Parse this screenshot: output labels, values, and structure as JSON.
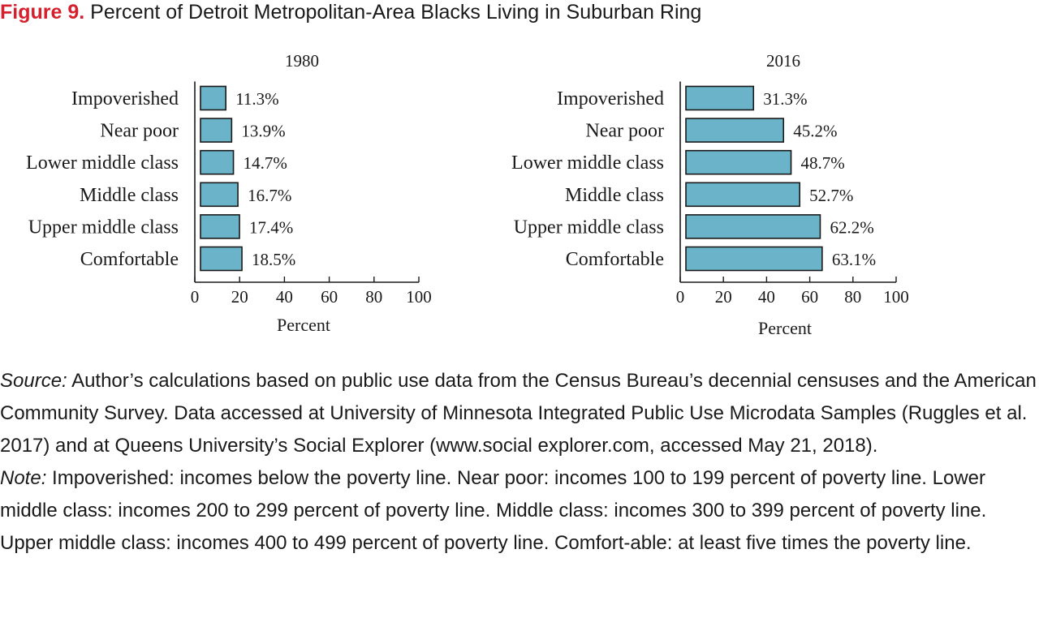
{
  "figure": {
    "number_label": "Figure 9.",
    "title": "Percent of Detroit Metropolitan-Area Blacks Living in Suburban Ring"
  },
  "colors": {
    "bar_fill": "#6ab3c9",
    "bar_stroke": "#1a1a1a",
    "accent": "#d6202e",
    "text": "#1a1a1a"
  },
  "chart_data": [
    {
      "type": "bar",
      "orientation": "horizontal",
      "title": "1980",
      "xlabel": "Percent",
      "ylabel": "",
      "xlim": [
        0,
        100
      ],
      "ticks": [
        0,
        20,
        40,
        60,
        80,
        100
      ],
      "grid": false,
      "categories": [
        "Impoverished",
        "Near poor",
        "Lower middle class",
        "Middle class",
        "Upper middle class",
        "Comfortable"
      ],
      "values": [
        11.3,
        13.9,
        14.7,
        16.7,
        17.4,
        18.5
      ],
      "data_labels": [
        "11.3%",
        "13.9%",
        "14.7%",
        "16.7%",
        "17.4%",
        "18.5%"
      ]
    },
    {
      "type": "bar",
      "orientation": "horizontal",
      "title": "2016",
      "xlabel": "Percent",
      "ylabel": "",
      "xlim": [
        0,
        100
      ],
      "ticks": [
        0,
        20,
        40,
        60,
        80,
        100
      ],
      "grid": false,
      "categories": [
        "Impoverished",
        "Near poor",
        "Lower middle class",
        "Middle class",
        "Upper middle class",
        "Comfortable"
      ],
      "values": [
        31.3,
        45.2,
        48.7,
        52.7,
        62.2,
        63.1
      ],
      "data_labels": [
        "31.3%",
        "45.2%",
        "48.7%",
        "52.7%",
        "62.2%",
        "63.1%"
      ]
    }
  ],
  "source": {
    "lead": "Source:",
    "text": " Author’s calculations based on public use data from the Census Bureau’s decennial censuses and the American Community Survey. Data accessed at University of Minnesota Integrated Public Use Microdata Samples (Ruggles et al. 2017) and at Queens University’s Social Explorer (www.social explorer.com, accessed May 21, 2018)."
  },
  "note": {
    "lead": "Note:",
    "text": " Impoverished: incomes below the poverty line. Near poor: incomes 100 to 199 percent of poverty line. Lower middle class: incomes 200 to 299 percent of poverty line. Middle class: incomes 300 to 399 percent of poverty line. Upper middle class: incomes 400 to 499 percent of poverty line. Comfort-able: at least five times the poverty line."
  }
}
